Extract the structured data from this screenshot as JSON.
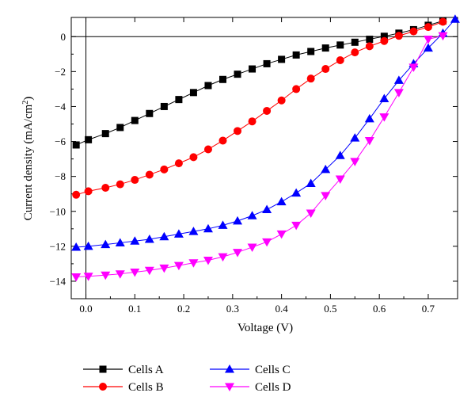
{
  "chart_data": {
    "type": "line",
    "title": "",
    "xlabel": "Voltage (V)",
    "ylabel_parts": [
      "Current density (mA/cm",
      "2",
      ")"
    ],
    "xlim": [
      -0.03,
      0.76
    ],
    "ylim": [
      -15,
      1.1
    ],
    "xticks": [
      0,
      0.1,
      0.2,
      0.3,
      0.4,
      0.5,
      0.6,
      0.7
    ],
    "xtick_labels": [
      "0.0",
      "0.1",
      "0.2",
      "0.3",
      "0.4",
      "0.5",
      "0.6",
      "0.7"
    ],
    "yticks": [
      0,
      -2,
      -4,
      -6,
      -8,
      -10,
      -12,
      -14
    ],
    "ytick_labels": [
      "0",
      "−2",
      "−4",
      "−6",
      "−8",
      "−10",
      "−12",
      "−14"
    ],
    "grid": false,
    "legend_position": "bottom",
    "series": [
      {
        "name": "Cells A",
        "color": "#000000",
        "marker": "square",
        "x": [
          -0.02,
          0.005,
          0.04,
          0.07,
          0.1,
          0.13,
          0.16,
          0.19,
          0.22,
          0.25,
          0.28,
          0.31,
          0.34,
          0.37,
          0.4,
          0.43,
          0.46,
          0.49,
          0.52,
          0.55,
          0.58,
          0.61,
          0.64,
          0.67,
          0.7,
          0.73
        ],
        "y": [
          -6.2,
          -5.9,
          -5.55,
          -5.2,
          -4.8,
          -4.4,
          -4.0,
          -3.6,
          -3.2,
          -2.8,
          -2.45,
          -2.15,
          -1.85,
          -1.55,
          -1.3,
          -1.05,
          -0.85,
          -0.65,
          -0.48,
          -0.32,
          -0.15,
          0.02,
          0.2,
          0.4,
          0.65,
          0.9
        ]
      },
      {
        "name": "Cells B",
        "color": "#ff0000",
        "marker": "circle",
        "x": [
          -0.02,
          0.005,
          0.04,
          0.07,
          0.1,
          0.13,
          0.16,
          0.19,
          0.22,
          0.25,
          0.28,
          0.31,
          0.34,
          0.37,
          0.4,
          0.43,
          0.46,
          0.49,
          0.52,
          0.55,
          0.58,
          0.61,
          0.64,
          0.67,
          0.7,
          0.73
        ],
        "y": [
          -9.05,
          -8.85,
          -8.65,
          -8.45,
          -8.2,
          -7.9,
          -7.6,
          -7.25,
          -6.9,
          -6.45,
          -5.95,
          -5.4,
          -4.85,
          -4.25,
          -3.65,
          -3.0,
          -2.4,
          -1.85,
          -1.35,
          -0.9,
          -0.55,
          -0.25,
          0.05,
          0.3,
          0.55,
          0.85
        ]
      },
      {
        "name": "Cells C",
        "color": "#0000ff",
        "marker": "triangle-up",
        "x": [
          -0.02,
          0.005,
          0.04,
          0.07,
          0.1,
          0.13,
          0.16,
          0.19,
          0.22,
          0.25,
          0.28,
          0.31,
          0.34,
          0.37,
          0.4,
          0.43,
          0.46,
          0.49,
          0.52,
          0.55,
          0.58,
          0.61,
          0.64,
          0.67,
          0.7,
          0.73,
          0.755
        ],
        "y": [
          -12.05,
          -12.0,
          -11.9,
          -11.8,
          -11.7,
          -11.6,
          -11.45,
          -11.3,
          -11.15,
          -11.0,
          -10.8,
          -10.55,
          -10.25,
          -9.9,
          -9.45,
          -8.95,
          -8.4,
          -7.6,
          -6.8,
          -5.8,
          -4.7,
          -3.55,
          -2.5,
          -1.55,
          -0.65,
          0.2,
          1.0
        ]
      },
      {
        "name": "Cells D",
        "color": "#ff00ff",
        "marker": "triangle-down",
        "x": [
          -0.02,
          0.005,
          0.04,
          0.07,
          0.1,
          0.13,
          0.16,
          0.19,
          0.22,
          0.25,
          0.28,
          0.31,
          0.34,
          0.37,
          0.4,
          0.43,
          0.46,
          0.49,
          0.52,
          0.55,
          0.58,
          0.61,
          0.64,
          0.67,
          0.7,
          0.73
        ],
        "y": [
          -13.75,
          -13.72,
          -13.65,
          -13.58,
          -13.48,
          -13.38,
          -13.25,
          -13.1,
          -12.95,
          -12.8,
          -12.6,
          -12.35,
          -12.05,
          -11.75,
          -11.3,
          -10.8,
          -10.1,
          -9.1,
          -8.15,
          -7.15,
          -5.95,
          -4.6,
          -3.2,
          -1.75,
          -0.15,
          0.05
        ]
      }
    ]
  }
}
